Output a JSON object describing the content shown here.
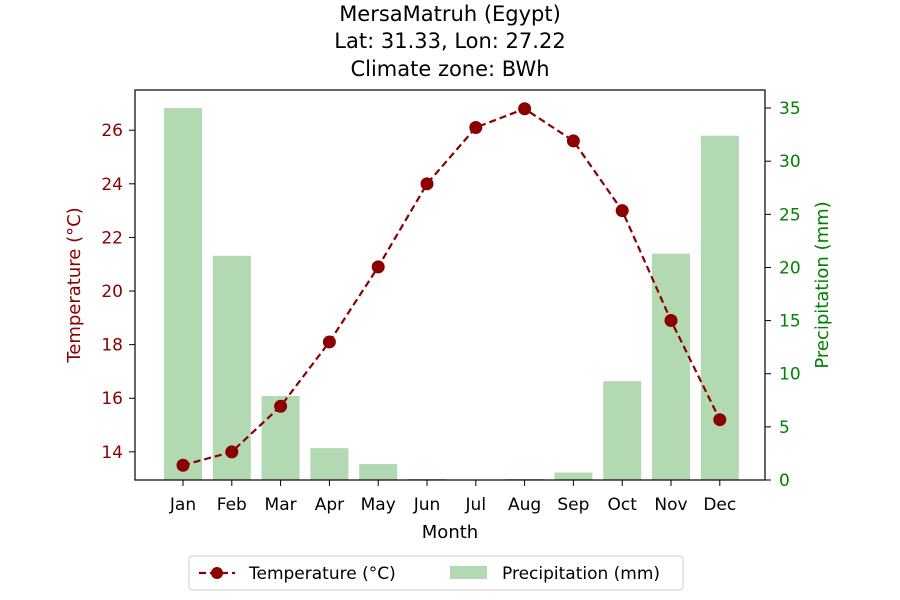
{
  "chart_data": {
    "type": "bar+line",
    "title_lines": [
      "MersaMatruh (Egypt)",
      "Lat: 31.33, Lon: 27.22",
      "Climate zone: BWh"
    ],
    "categories": [
      "Jan",
      "Feb",
      "Mar",
      "Apr",
      "May",
      "Jun",
      "Jul",
      "Aug",
      "Sep",
      "Oct",
      "Nov",
      "Dec"
    ],
    "xlabel": "Month",
    "y_left": {
      "label": "Temperature (°C)",
      "range": [
        12.95,
        27.5
      ],
      "ticks": [
        14,
        16,
        18,
        20,
        22,
        24,
        26
      ],
      "color": "#8b0000"
    },
    "y_right": {
      "label": "Precipitation (mm)",
      "range": [
        0,
        36.7
      ],
      "ticks": [
        0,
        5,
        10,
        15,
        20,
        25,
        30,
        35
      ],
      "color": "#008000"
    },
    "series": [
      {
        "name": "Temperature (°C)",
        "type": "line",
        "axis": "left",
        "color": "#8b0000",
        "style": "dashed",
        "marker": "circle",
        "values": [
          13.5,
          14.0,
          15.7,
          18.1,
          20.9,
          24.0,
          26.1,
          26.8,
          25.6,
          23.0,
          18.9,
          15.2
        ]
      },
      {
        "name": "Precipitation (mm)",
        "type": "bar",
        "axis": "right",
        "color": "#b2d9b2",
        "values": [
          35.0,
          21.1,
          7.9,
          3.0,
          1.5,
          0.1,
          0.0,
          0.1,
          0.7,
          9.3,
          21.3,
          32.4
        ]
      }
    ],
    "legend": {
      "placement": "bottom-center",
      "entries": [
        "Temperature (°C)",
        "Precipitation (mm)"
      ]
    },
    "grid": false
  }
}
